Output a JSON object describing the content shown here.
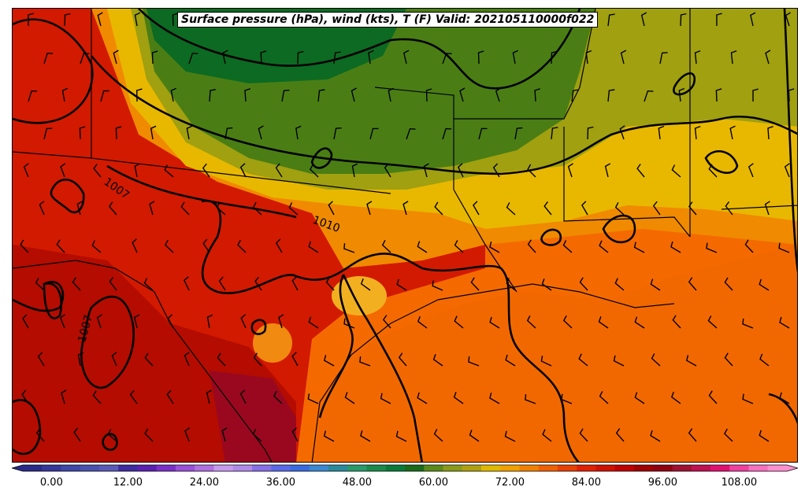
{
  "title": "Surface pressure (hPa), wind (kts), T (F) Valid: 202105110000f022",
  "map": {
    "variable_filled": "Temperature (F)",
    "variable_contours": "Surface pressure (hPa)",
    "variable_barbs": "Wind (kts)",
    "contour_labels": [
      "1007",
      "1010",
      "1007"
    ]
  },
  "colorbar": {
    "tick_labels": [
      "0.00",
      "12.00",
      "24.00",
      "36.00",
      "48.00",
      "60.00",
      "72.00",
      "84.00",
      "96.00",
      "108.00"
    ],
    "colors": [
      "#2a2a88",
      "#35379a",
      "#3f47a8",
      "#4a52b0",
      "#5a5ab8",
      "#3f2aa0",
      "#5a20b0",
      "#7a30c8",
      "#9a50d8",
      "#b070e0",
      "#c89aee",
      "#b08ae8",
      "#8870e8",
      "#5a6ae8",
      "#3a6ae0",
      "#3a88d0",
      "#2a8a9a",
      "#2a9a6a",
      "#1a8a4a",
      "#0a7a3a",
      "#1a6a1a",
      "#5a8a1a",
      "#8a9a1a",
      "#b0a010",
      "#e0b800",
      "#f0a000",
      "#f08000",
      "#f06000",
      "#e84000",
      "#e02000",
      "#d01000",
      "#c00000",
      "#a00000",
      "#900010",
      "#a01030",
      "#c01050",
      "#e01070",
      "#f040a0",
      "#f870c0",
      "#ff90d0"
    ]
  }
}
